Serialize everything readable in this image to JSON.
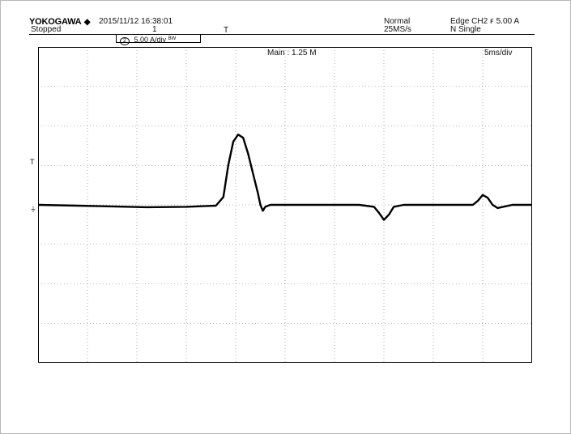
{
  "header": {
    "brand": "YOKOGAWA",
    "brand_symbol": "◆",
    "status": "Stopped",
    "datetime": "2015/11/12 16:38:01",
    "acq_count": "1",
    "trigger_position_marker": "T",
    "acq_mode": "Normal",
    "sample_rate": "25MS/s",
    "trigger_type": "Edge CH2",
    "trigger_slope": "ꜰ",
    "trigger_level": "5.00 A",
    "trigger_mode": "N Single"
  },
  "channel": {
    "number": "2",
    "scale": "5.00 A/div",
    "bw_flag": "BW"
  },
  "screen": {
    "main_label": "Main : 1.25 M",
    "time_div": "5ms/div",
    "trigger_level_marker": "T",
    "ground_marker": "⏚"
  },
  "chart_data": {
    "type": "line",
    "title": "",
    "xlabel": "",
    "ylabel": "",
    "x_divisions": 10,
    "y_divisions": 8,
    "time_per_div_ms": 5,
    "amps_per_div": 5,
    "xlim_div": [
      0,
      10
    ],
    "ylim_div": [
      -4,
      4
    ],
    "grid": true,
    "series": [
      {
        "name": "",
        "x_div": [
          0,
          0.8,
          1.5,
          2.2,
          3.0,
          3.6,
          3.75,
          3.85,
          3.95,
          4.05,
          4.15,
          4.25,
          4.35,
          4.45,
          4.5,
          4.55,
          4.6,
          4.7,
          4.8,
          5.0,
          5.5,
          6.0,
          6.5,
          6.8,
          6.9,
          7.0,
          7.1,
          7.2,
          7.4,
          7.6,
          8.0,
          8.5,
          8.8,
          8.9,
          9.0,
          9.1,
          9.2,
          9.3,
          9.6,
          10.0
        ],
        "y_div": [
          0.0,
          -0.02,
          -0.04,
          -0.06,
          -0.05,
          -0.02,
          0.2,
          1.0,
          1.6,
          1.78,
          1.7,
          1.3,
          0.8,
          0.3,
          0.0,
          -0.15,
          -0.05,
          0.0,
          0.0,
          0.0,
          0.0,
          0.0,
          0.0,
          -0.05,
          -0.2,
          -0.38,
          -0.25,
          -0.05,
          0.0,
          0.0,
          0.0,
          0.0,
          0.0,
          0.1,
          0.25,
          0.18,
          0.0,
          -0.08,
          0.0,
          0.0
        ]
      }
    ]
  },
  "colors": {
    "background": "#ffffff",
    "trace": "#000000",
    "grid": "#777777",
    "frame": "#b8b8b8"
  }
}
